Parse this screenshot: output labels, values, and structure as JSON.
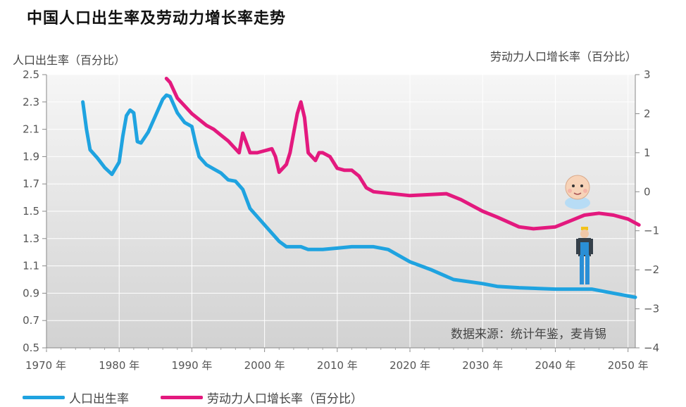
{
  "header": {
    "title": "中国人口出生率及劳动力增长率走势"
  },
  "source": "数据来源：统计年鉴，麦肯锡",
  "chart_data": {
    "type": "line",
    "title": "中国人口出生率及劳动力增长率走势",
    "xlabel": "",
    "ylabel_left": "人口出生率（百分比）",
    "ylabel_right": "劳动力人口增长率（百分比）",
    "xlim": [
      1970,
      2051
    ],
    "ylim_left": [
      0.5,
      2.5
    ],
    "ylim_right": [
      -4,
      3
    ],
    "x_ticks": [
      1970,
      1980,
      1990,
      2000,
      2010,
      2020,
      2030,
      2040,
      2050
    ],
    "x_tick_labels": [
      "1970 年",
      "1980 年",
      "1990 年",
      "2000 年",
      "2010 年",
      "2020 年",
      "2030 年",
      "2040 年",
      "2050 年"
    ],
    "y_left_ticks": [
      "0.5",
      "0.7",
      "0.9",
      "1.1",
      "1.3",
      "1.5",
      "1.7",
      "1.9",
      "2.1",
      "2.3",
      "2.5"
    ],
    "y_right_ticks": [
      "−4",
      "−3",
      "−2",
      "−1",
      "0",
      "1",
      "2",
      "3"
    ],
    "grid": true,
    "legend_position": "bottom",
    "series": [
      {
        "name": "人口出生率",
        "axis": "left",
        "color": "#1fa3e0",
        "x": [
          1975,
          1975.5,
          1976,
          1977,
          1978,
          1979,
          1980,
          1980.5,
          1981,
          1981.5,
          1982,
          1982.5,
          1983,
          1984,
          1985,
          1986,
          1986.5,
          1987,
          1988,
          1989,
          1990,
          1990.5,
          1991,
          1992,
          1993,
          1994,
          1995,
          1996,
          1997,
          1998,
          2000,
          2002,
          2003,
          2005,
          2006,
          2008,
          2010,
          2012,
          2015,
          2017,
          2020,
          2023,
          2026,
          2030,
          2032,
          2035,
          2040,
          2045,
          2048,
          2050,
          2051
        ],
        "y": [
          2.3,
          2.1,
          1.95,
          1.89,
          1.82,
          1.77,
          1.86,
          2.05,
          2.2,
          2.24,
          2.22,
          2.01,
          2.0,
          2.08,
          2.2,
          2.32,
          2.35,
          2.34,
          2.22,
          2.15,
          2.12,
          2.0,
          1.9,
          1.84,
          1.81,
          1.78,
          1.73,
          1.72,
          1.66,
          1.52,
          1.4,
          1.28,
          1.24,
          1.24,
          1.22,
          1.22,
          1.23,
          1.24,
          1.24,
          1.22,
          1.13,
          1.07,
          1.0,
          0.97,
          0.95,
          0.94,
          0.93,
          0.93,
          0.9,
          0.88,
          0.87
        ]
      },
      {
        "name": "劳动力人口增长率（百分比）",
        "axis": "right",
        "color": "#e3197e",
        "x": [
          1986.5,
          1987,
          1988,
          1989,
          1990,
          1991,
          1992,
          1993,
          1994,
          1995,
          1996,
          1996.5,
          1997,
          1998,
          1999,
          2000,
          2001,
          2001.5,
          2002,
          2003,
          2003.5,
          2004,
          2004.5,
          2005,
          2005.5,
          2006,
          2007,
          2007.5,
          2008,
          2009,
          2010,
          2011,
          2012,
          2013,
          2014,
          2015,
          2020,
          2025,
          2027,
          2030,
          2032,
          2035,
          2037,
          2040,
          2042,
          2044,
          2046,
          2048,
          2050,
          2051.5
        ],
        "y": [
          2.9,
          2.8,
          2.4,
          2.2,
          2.0,
          1.85,
          1.7,
          1.6,
          1.45,
          1.3,
          1.1,
          1.0,
          1.5,
          1.0,
          1.0,
          1.05,
          1.1,
          0.9,
          0.5,
          0.7,
          1.0,
          1.5,
          2.0,
          2.3,
          1.9,
          1.0,
          0.8,
          1.0,
          1.0,
          0.9,
          0.6,
          0.55,
          0.55,
          0.4,
          0.1,
          0.0,
          -0.1,
          -0.05,
          -0.2,
          -0.5,
          -0.65,
          -0.9,
          -0.95,
          -0.9,
          -0.75,
          -0.6,
          -0.55,
          -0.6,
          -0.7,
          -0.85
        ]
      }
    ]
  },
  "legend": [
    {
      "label": "人口出生率",
      "color": "#1fa3e0"
    },
    {
      "label": "劳动力人口增长率（百分比）",
      "color": "#e3197e"
    }
  ]
}
